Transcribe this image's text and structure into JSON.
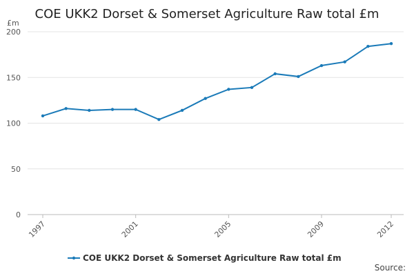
{
  "chart_data": {
    "type": "line",
    "title": "COE UKK2 Dorset & Somerset Agriculture Raw total £m",
    "y_unit": "£m",
    "source": "Source:",
    "x": [
      1997,
      1998,
      1999,
      2000,
      2001,
      2002,
      2003,
      2004,
      2005,
      2006,
      2007,
      2008,
      2009,
      2010,
      2011,
      2012
    ],
    "series": [
      {
        "name": "COE UKK2 Dorset & Somerset Agriculture Raw total £m",
        "color": "#1a7ab8",
        "values": [
          108,
          116,
          114,
          115,
          115,
          104,
          114,
          127,
          137,
          139,
          154,
          151,
          163,
          167,
          184,
          187
        ]
      }
    ],
    "xlim": [
      1997,
      2012
    ],
    "xticks": [
      1997,
      2001,
      2005,
      2009,
      2012
    ],
    "ylim": [
      0,
      200
    ],
    "yticks": [
      0,
      50,
      100,
      150,
      200
    ],
    "grid": true
  }
}
